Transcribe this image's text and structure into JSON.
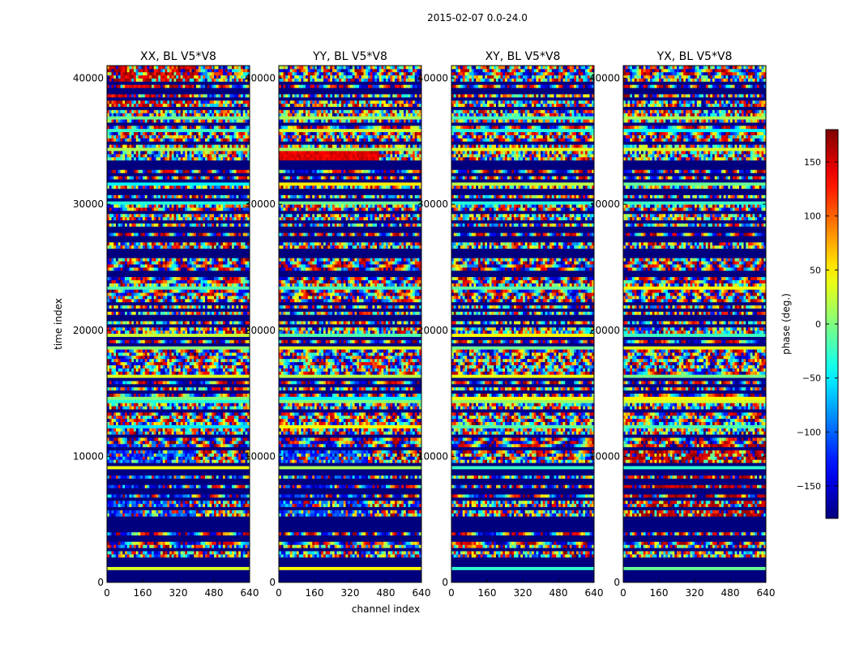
{
  "figure": {
    "suptitle": "2015-02-07 0.0-24.0"
  },
  "chart_data": {
    "type": "heatmap",
    "suptitle": "2015-02-07 0.0-24.0",
    "xlabel": "channel index",
    "ylabel": "time index",
    "xlim": [
      0,
      640
    ],
    "ylim": [
      0,
      41000
    ],
    "xticks": [
      0,
      160,
      320,
      480,
      640
    ],
    "xtick_labels": [
      "0",
      "160",
      "320",
      "480",
      "640"
    ],
    "yticks": [
      0,
      10000,
      20000,
      30000,
      40000
    ],
    "ytick_labels": [
      "0",
      "10000",
      "20000",
      "30000",
      "40000"
    ],
    "panels": [
      {
        "title": "XX, BL V5*V8",
        "polarization": "XX"
      },
      {
        "title": "YY, BL V5*V8",
        "polarization": "YY"
      },
      {
        "title": "XY, BL V5*V8",
        "polarization": "XY"
      },
      {
        "title": "YX, BL V5*V8",
        "polarization": "YX"
      }
    ],
    "colorbar": {
      "label": "phase (deg.)",
      "colormap": "jet",
      "vmin": -180,
      "vmax": 180,
      "ticks": [
        -150,
        -100,
        -50,
        0,
        50,
        100,
        150
      ],
      "tick_labels": [
        "−150",
        "−100",
        "−50",
        "0",
        "50",
        "100",
        "150"
      ]
    }
  }
}
